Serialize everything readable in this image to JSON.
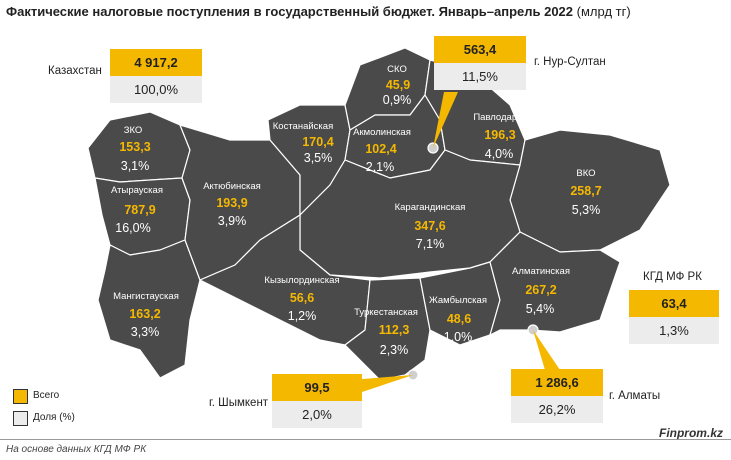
{
  "title": {
    "main": "Фактические налоговые поступления в государственный бюджет. Январь–апрель 2022",
    "unit": "(млрд тг)"
  },
  "colors": {
    "map_fill": "#4a4a4a",
    "map_border": "#ffffff",
    "value": "#f5b800",
    "percent_bg": "#ececec"
  },
  "regions": [
    {
      "name": "СКО",
      "value": "45,9",
      "percent": "0,9%"
    },
    {
      "name": "Костанайская",
      "value": "170,4",
      "percent": "3,5%"
    },
    {
      "name": "Акмолинская",
      "value": "102,4",
      "percent": "2,1%"
    },
    {
      "name": "Павлодарская",
      "value": "196,3",
      "percent": "4,0%"
    },
    {
      "name": "ЗКО",
      "value": "153,3",
      "percent": "3,1%"
    },
    {
      "name": "Атырауская",
      "value": "787,9",
      "percent": "16,0%"
    },
    {
      "name": "Актюбинская",
      "value": "193,9",
      "percent": "3,9%"
    },
    {
      "name": "ВКО",
      "value": "258,7",
      "percent": "5,3%"
    },
    {
      "name": "Карагандинская",
      "value": "347,6",
      "percent": "7,1%"
    },
    {
      "name": "Кызылординская",
      "value": "56,6",
      "percent": "1,2%"
    },
    {
      "name": "Мангистауская",
      "value": "163,2",
      "percent": "3,3%"
    },
    {
      "name": "Туркестанская",
      "value": "112,3",
      "percent": "2,3%"
    },
    {
      "name": "Жамбылская",
      "value": "48,6",
      "percent": "1,0%"
    },
    {
      "name": "Алматинская",
      "value": "267,2",
      "percent": "5,4%"
    }
  ],
  "boxes": {
    "kazakhstan": {
      "label": "Казахстан",
      "value": "4 917,2",
      "percent": "100,0%"
    },
    "nursultan": {
      "label": "г. Нур-Султан",
      "value": "563,4",
      "percent": "11,5%"
    },
    "kgd": {
      "label": "КГД МФ РК",
      "value": "63,4",
      "percent": "1,3%"
    },
    "shymkent": {
      "label": "г. Шымкент",
      "value": "99,5",
      "percent": "2,0%"
    },
    "almaty": {
      "label": "г. Алматы",
      "value": "1 286,6",
      "percent": "26,2%"
    }
  },
  "legend": {
    "total": "Всего",
    "share": "Доля (%)"
  },
  "source": "На основе данных КГД МФ РК",
  "brand": "Finprom.kz"
}
